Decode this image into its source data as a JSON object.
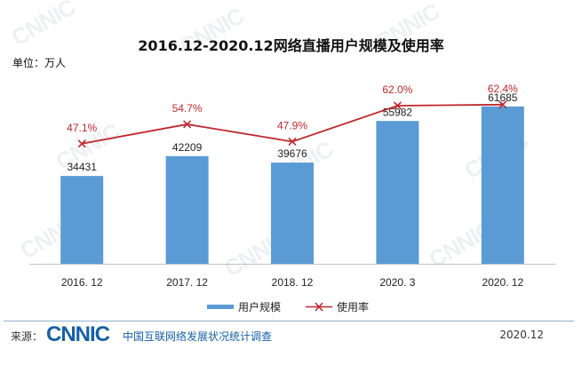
{
  "chart_data": {
    "type": "bar+line",
    "title": "2016.12-2020.12网络直播用户规模及使用率",
    "unit_label": "单位：万人",
    "categories": [
      "2016. 12",
      "2017. 12",
      "2018. 12",
      "2020. 3",
      "2020. 12"
    ],
    "series": [
      {
        "name": "用户规模",
        "type": "bar",
        "values": [
          34431,
          42209,
          39676,
          55982,
          61685
        ],
        "labels": [
          "34431",
          "42209",
          "39676",
          "55982",
          "61685"
        ],
        "color": "#5b9bd5"
      },
      {
        "name": "使用率",
        "type": "line",
        "values": [
          47.1,
          54.7,
          47.9,
          62.0,
          62.4
        ],
        "labels": [
          "47.1%",
          "54.7%",
          "47.9%",
          "62.0%",
          "62.4%"
        ],
        "color": "#c0272d"
      }
    ],
    "ylim": [
      0,
      70000
    ],
    "y2lim": [
      0,
      70
    ],
    "grid": false,
    "legend": "bottom"
  },
  "footer": {
    "source_label": "来源：",
    "logo_text": "CNNIC",
    "org": "中国互联网络发展状况统计调查",
    "date": "2020.12"
  }
}
